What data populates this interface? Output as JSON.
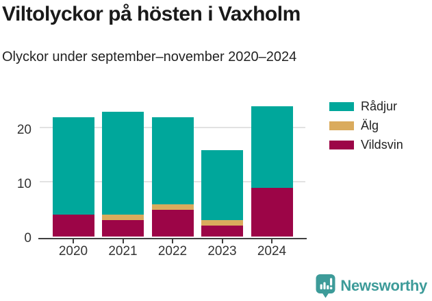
{
  "header": {
    "title": "Viltolyckor på hösten i Vaxholm",
    "subtitle": "Olyckor under september–november 2020–2024"
  },
  "chart_data": {
    "type": "bar",
    "stacked": true,
    "title": "Viltolyckor på hösten i Vaxholm",
    "subtitle": "Olyckor under september–november 2020–2024",
    "categories": [
      "2020",
      "2021",
      "2022",
      "2023",
      "2024"
    ],
    "series": [
      {
        "name": "Rådjur",
        "color": "#00A79B",
        "values": [
          18,
          19,
          16,
          13,
          15
        ]
      },
      {
        "name": "Älg",
        "color": "#DAAB5D",
        "values": [
          0,
          1,
          1,
          1,
          0
        ]
      },
      {
        "name": "Vildsvin",
        "color": "#9C0547",
        "values": [
          4,
          3,
          5,
          2,
          9
        ]
      }
    ],
    "stack_totals": [
      22,
      23,
      22,
      16,
      24
    ],
    "xlabel": "",
    "ylabel": "",
    "ylim": [
      0,
      26
    ],
    "yticks": [
      0,
      10,
      20
    ],
    "grid": "horizontal",
    "legend_position": "top-right"
  },
  "legend": {
    "items": [
      {
        "label": "Rådjur",
        "color": "#00A79B"
      },
      {
        "label": "Älg",
        "color": "#DAAB5D"
      },
      {
        "label": "Vildsvin",
        "color": "#9C0547"
      }
    ]
  },
  "branding": {
    "name": "Newsworthy",
    "color": "#3D9B99",
    "icon": "newsworthy-chart-bubble-icon"
  },
  "style": {
    "axis_line_color": "#3F3F3F",
    "axis_label_color": "#333333",
    "grid_color": "#E2E2E2"
  }
}
